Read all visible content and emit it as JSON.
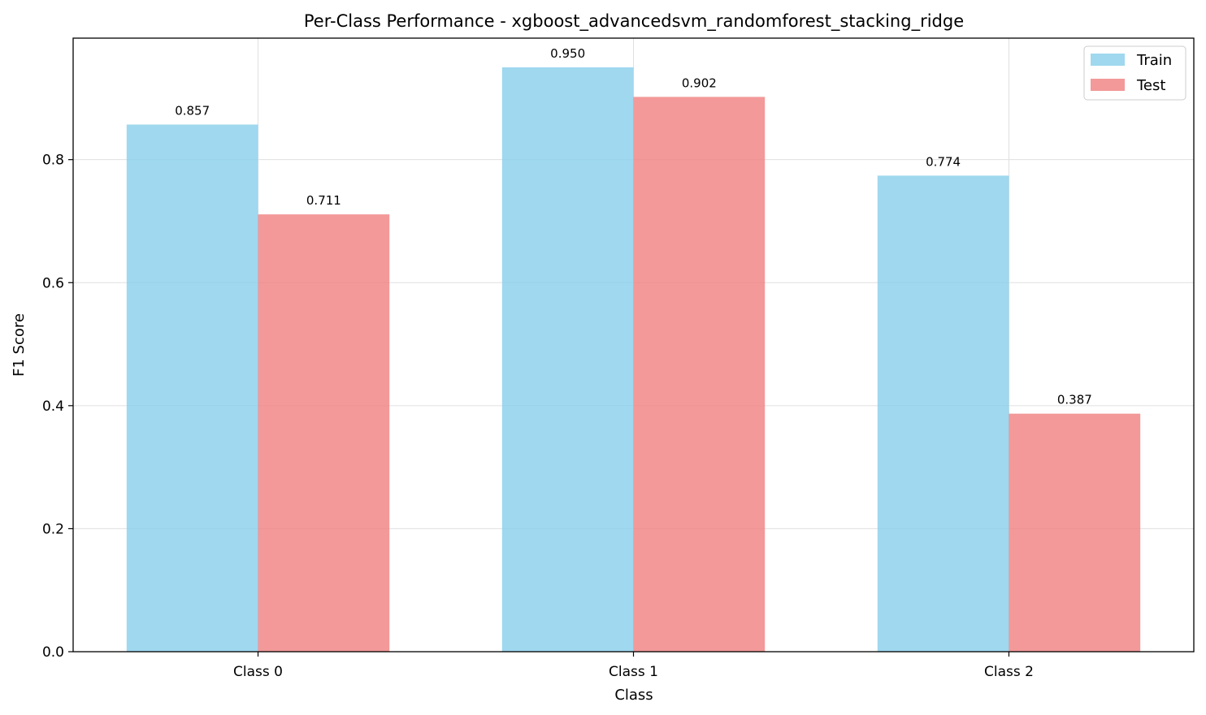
{
  "chart_data": {
    "type": "bar",
    "title": "Per-Class Performance - xgboost_advancedsvm_randomforest_stacking_ridge",
    "xlabel": "Class",
    "ylabel": "F1 Score",
    "categories": [
      "Class 0",
      "Class 1",
      "Class 2"
    ],
    "series": [
      {
        "name": "Train",
        "values": [
          0.857,
          0.95,
          0.774
        ],
        "color": "#87ceeb"
      },
      {
        "name": "Test",
        "values": [
          0.711,
          0.902,
          0.387
        ],
        "color": "#f08080"
      }
    ],
    "value_labels": [
      [
        "0.857",
        "0.950",
        "0.774"
      ],
      [
        "0.711",
        "0.902",
        "0.387"
      ]
    ],
    "ylim": [
      0,
      0.9975
    ],
    "yticks": [
      0.0,
      0.2,
      0.4,
      0.6,
      0.8
    ],
    "ytick_labels": [
      "0.0",
      "0.2",
      "0.4",
      "0.6",
      "0.8"
    ],
    "grid": true,
    "legend_position": "top-right"
  }
}
